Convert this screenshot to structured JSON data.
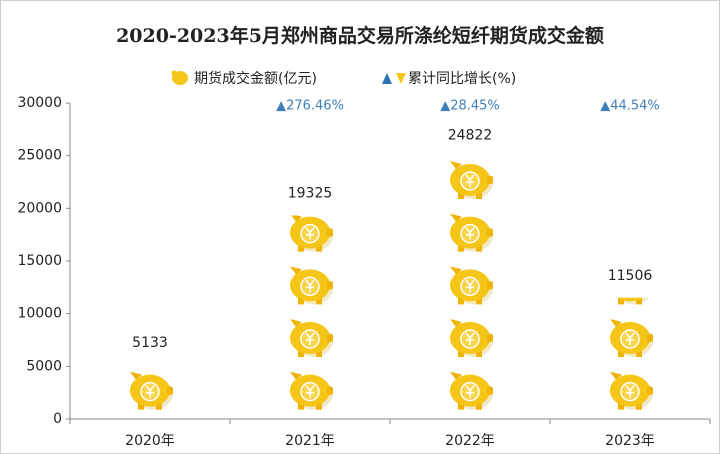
{
  "chart_data": {
    "type": "pictograph",
    "title": "2020-2023年5月郑州商品交易所涤纶短纤期货成交金额",
    "categories": [
      "2020年",
      "2021年",
      "2022年",
      "2023年"
    ],
    "series": [
      {
        "name": "期货成交金额(亿元)",
        "color": "#f5c518",
        "values": [
          5133,
          19325,
          24822,
          11506
        ]
      },
      {
        "name": "累计同比增长(%)",
        "color": "#2e75b6",
        "values": [
          null,
          276.46,
          28.45,
          44.54
        ],
        "value_labels": [
          null,
          "▲276.46%",
          "▲28.45%",
          "▲44.54%"
        ]
      }
    ],
    "ylim": [
      0,
      30000
    ],
    "yticks": [
      0,
      5000,
      10000,
      15000,
      20000,
      25000,
      30000
    ]
  }
}
